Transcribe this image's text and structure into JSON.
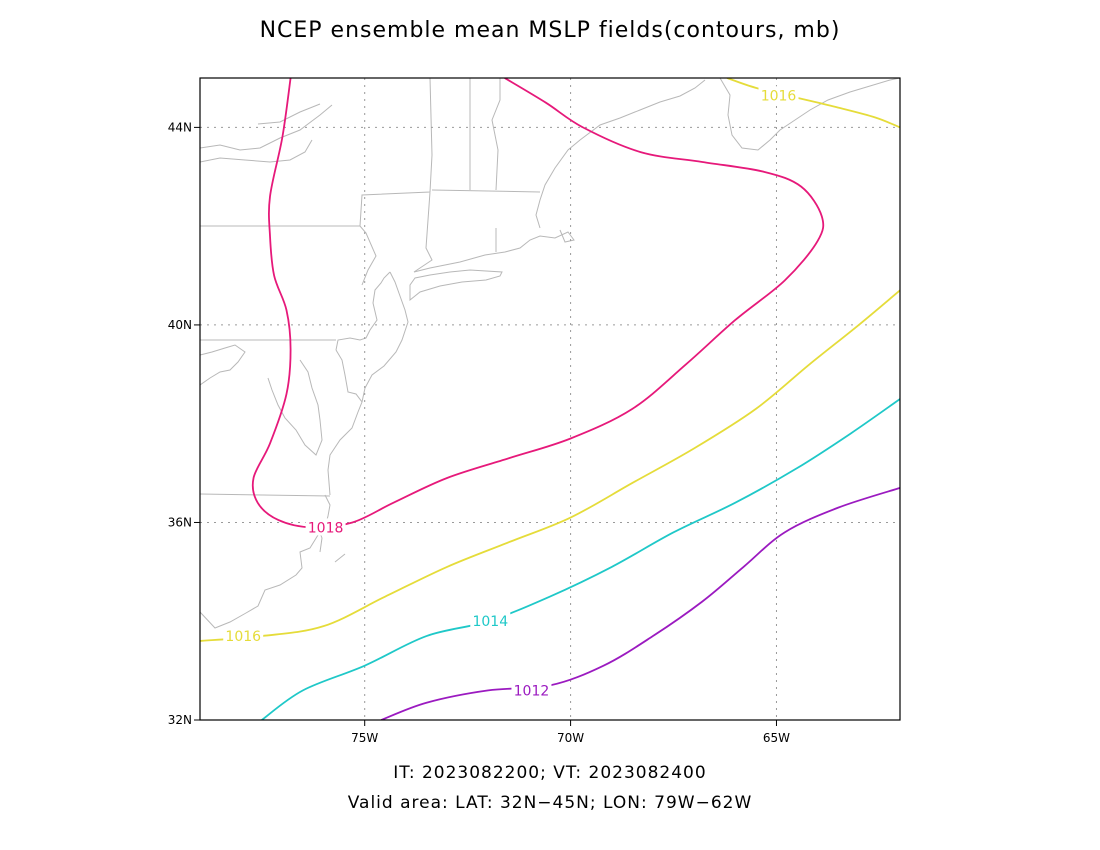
{
  "title": "NCEP ensemble mean MSLP fields(contours, mb)",
  "subtitle_line1": "IT: 2023082200; VT: 2023082400",
  "subtitle_line2": "Valid area: LAT: 32N−45N; LON: 79W−62W",
  "map": {
    "lon_range": [
      -79,
      -62
    ],
    "lat_range": [
      32,
      45
    ],
    "grid": true,
    "x_ticks": [
      {
        "value": -75,
        "label": "75W"
      },
      {
        "value": -70,
        "label": "70W"
      },
      {
        "value": -65,
        "label": "65W"
      }
    ],
    "y_ticks": [
      {
        "value": 32,
        "label": "32N"
      },
      {
        "value": 36,
        "label": "36N"
      },
      {
        "value": 40,
        "label": "40N"
      },
      {
        "value": 44,
        "label": "44N"
      }
    ],
    "colors": {
      "1018": "#e6197a",
      "1016": "#e5dc3a",
      "1014": "#1fc8c8",
      "1012": "#9b1ac0",
      "coast": "#b8b8b8",
      "grid": "#9a9a9a"
    },
    "contours": [
      {
        "level": "1018",
        "label": "1018",
        "label_at": [
          -75.95,
          35.9
        ],
        "points": [
          [
            -76.8,
            45
          ],
          [
            -77.0,
            43.8
          ],
          [
            -77.3,
            42.6
          ],
          [
            -77.3,
            41.8
          ],
          [
            -77.2,
            41.0
          ],
          [
            -76.9,
            40.3
          ],
          [
            -76.8,
            39.5
          ],
          [
            -76.9,
            38.6
          ],
          [
            -77.3,
            37.6
          ],
          [
            -77.7,
            36.9
          ],
          [
            -77.6,
            36.4
          ],
          [
            -77.1,
            36.05
          ],
          [
            -76.3,
            35.9
          ],
          [
            -75.3,
            36.0
          ],
          [
            -74.3,
            36.4
          ],
          [
            -73.0,
            36.9
          ],
          [
            -71.5,
            37.3
          ],
          [
            -70.0,
            37.7
          ],
          [
            -68.5,
            38.3
          ],
          [
            -67.2,
            39.2
          ],
          [
            -66.0,
            40.1
          ],
          [
            -64.8,
            40.9
          ],
          [
            -64.0,
            41.7
          ],
          [
            -63.9,
            42.2
          ],
          [
            -64.4,
            42.8
          ],
          [
            -65.3,
            43.1
          ],
          [
            -66.8,
            43.3
          ],
          [
            -68.3,
            43.5
          ],
          [
            -69.7,
            44.0
          ],
          [
            -70.6,
            44.5
          ],
          [
            -71.6,
            45
          ]
        ]
      },
      {
        "level": "1016",
        "label": "1016",
        "label_at": [
          -77.95,
          33.7
        ],
        "points": [
          [
            -79,
            33.6
          ],
          [
            -77.5,
            33.7
          ],
          [
            -76.0,
            33.9
          ],
          [
            -74.5,
            34.5
          ],
          [
            -73.0,
            35.1
          ],
          [
            -71.5,
            35.6
          ],
          [
            -70.0,
            36.1
          ],
          [
            -68.5,
            36.8
          ],
          [
            -67.0,
            37.5
          ],
          [
            -65.5,
            38.3
          ],
          [
            -64.2,
            39.2
          ],
          [
            -63.0,
            40.0
          ],
          [
            -62,
            40.7
          ]
        ]
      },
      {
        "level": "1016",
        "label": "1016",
        "label_at": [
          -64.95,
          44.65
        ],
        "points": [
          [
            -66.2,
            45
          ],
          [
            -65.5,
            44.8
          ],
          [
            -64.5,
            44.6
          ],
          [
            -63.5,
            44.4
          ],
          [
            -62.6,
            44.2
          ],
          [
            -62,
            44.0
          ]
        ]
      },
      {
        "level": "1014",
        "label": "1014",
        "label_at": [
          -71.95,
          34.0
        ],
        "points": [
          [
            -77.5,
            32
          ],
          [
            -76.5,
            32.6
          ],
          [
            -75.0,
            33.1
          ],
          [
            -73.5,
            33.7
          ],
          [
            -72.0,
            34.0
          ],
          [
            -70.5,
            34.5
          ],
          [
            -69.0,
            35.1
          ],
          [
            -67.5,
            35.8
          ],
          [
            -66.0,
            36.4
          ],
          [
            -64.5,
            37.1
          ],
          [
            -63.2,
            37.8
          ],
          [
            -62,
            38.5
          ]
        ]
      },
      {
        "level": "1012",
        "label": "1012",
        "label_at": [
          -70.95,
          32.6
        ],
        "points": [
          [
            -74.6,
            32
          ],
          [
            -73.5,
            32.35
          ],
          [
            -72.0,
            32.6
          ],
          [
            -70.5,
            32.7
          ],
          [
            -69.2,
            33.1
          ],
          [
            -68.0,
            33.7
          ],
          [
            -66.8,
            34.4
          ],
          [
            -65.8,
            35.1
          ],
          [
            -64.8,
            35.8
          ],
          [
            -63.5,
            36.3
          ],
          [
            -62,
            36.7
          ]
        ]
      }
    ]
  }
}
